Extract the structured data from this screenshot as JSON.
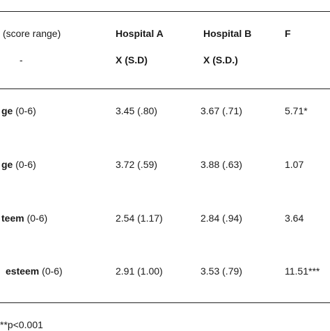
{
  "table": {
    "header": {
      "col1_line1": "(score range)",
      "col1_line2": "-",
      "col2_line1": "Hospital A",
      "col2_line2": "X (S.D)",
      "col3_line1": "Hospital B",
      "col3_line2": "X (S.D.)",
      "col4_line1": "F"
    },
    "rows": [
      {
        "label_bold": "ge",
        "range": " (0-6)",
        "a": "3.45 (.80)",
        "b": "3.67 (.71)",
        "f": "5.71*"
      },
      {
        "label_bold": "ge",
        "range": " (0-6)",
        "a": "3.72 (.59)",
        "b": "3.88 (.63)",
        "f": "1.07"
      },
      {
        "label_bold": "teem",
        "range": " (0-6)",
        "a": "2.54 (1.17)",
        "b": "2.84 (.94)",
        "f": "3.64"
      },
      {
        "label_bold": "esteem",
        "range": " (0-6)",
        "a": "2.91 (1.00)",
        "b": "3.53 (.79)",
        "f": "11.51***"
      }
    ],
    "footnote": "**p<0.001"
  }
}
